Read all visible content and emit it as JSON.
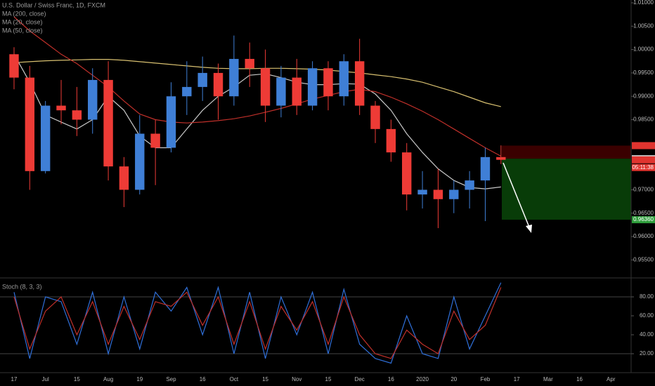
{
  "chart_data": [
    {
      "type": "candlestick",
      "title": "U.S. Dollar / Swiss Franc, 1D, FXCM",
      "categories": [
        "17",
        null,
        "Jul",
        null,
        "15",
        null,
        "Aug",
        null,
        "19",
        null,
        "Sep",
        null,
        "16",
        null,
        "Oct",
        null,
        "15",
        null,
        "Nov",
        null,
        "15",
        null,
        "Dec",
        null,
        "16",
        null,
        "2020",
        null,
        "20",
        null,
        "Feb",
        null,
        "17",
        null,
        "Mar",
        null,
        "16",
        null,
        "Apr",
        null
      ],
      "open": [
        0.999,
        0.994,
        0.974,
        0.988,
        0.987,
        0.985,
        0.9935,
        0.975,
        0.97,
        0.982,
        0.979,
        0.99,
        0.992,
        0.995,
        0.99,
        0.998,
        0.996,
        0.988,
        0.994,
        0.988,
        0.996,
        0.99,
        0.9975,
        0.988,
        0.983,
        0.978,
        0.969,
        0.97,
        0.968,
        0.97,
        0.972,
        0.977,
        null,
        null,
        null,
        null,
        null,
        null,
        null,
        null
      ],
      "high": [
        1.0005,
        0.9965,
        0.989,
        0.9935,
        0.992,
        0.996,
        0.9975,
        0.977,
        0.986,
        0.985,
        0.993,
        0.9975,
        0.9985,
        0.997,
        1.003,
        1.0015,
        1.0,
        0.9965,
        0.998,
        0.9975,
        0.9975,
        0.999,
        1.0023,
        0.989,
        0.985,
        0.98,
        0.974,
        0.9745,
        0.972,
        0.974,
        0.979,
        0.9795,
        null,
        null,
        null,
        null,
        null,
        null,
        null,
        null
      ],
      "low": [
        0.9915,
        0.97,
        0.9735,
        0.984,
        0.9815,
        0.982,
        0.972,
        0.9663,
        0.969,
        0.971,
        0.978,
        0.986,
        0.989,
        0.985,
        0.988,
        0.992,
        0.9845,
        0.9855,
        0.986,
        0.987,
        0.987,
        0.988,
        0.986,
        0.98,
        0.976,
        0.9656,
        0.966,
        0.9618,
        0.965,
        0.966,
        0.9633,
        0.9755,
        null,
        null,
        null,
        null,
        null,
        null,
        null,
        null
      ],
      "close": [
        0.994,
        0.974,
        0.988,
        0.987,
        0.985,
        0.9935,
        0.975,
        0.97,
        0.982,
        0.979,
        0.99,
        0.992,
        0.995,
        0.99,
        0.998,
        0.996,
        0.988,
        0.994,
        0.988,
        0.996,
        0.99,
        0.9975,
        0.988,
        0.983,
        0.978,
        0.969,
        0.97,
        0.968,
        0.97,
        0.972,
        0.977,
        0.97641,
        null,
        null,
        null,
        null,
        null,
        null,
        null,
        null
      ],
      "up_color": "#3f7fd6",
      "down_color": "#ee3b36",
      "series": [
        {
          "name": "MA (200, close)",
          "color": "#d8c070",
          "values": [
            0.9972,
            0.9974,
            0.9976,
            0.9977,
            0.9978,
            0.9979,
            0.9979,
            0.9977,
            0.9974,
            0.9971,
            0.9968,
            0.9965,
            0.9962,
            0.996,
            0.9959,
            0.9959,
            0.996,
            0.996,
            0.9959,
            0.9958,
            0.9956,
            0.9953,
            0.995,
            0.9946,
            0.9942,
            0.9937,
            0.993,
            0.992,
            0.991,
            0.9898,
            0.9886,
            0.9878,
            null,
            null,
            null,
            null,
            null,
            null,
            null,
            null
          ]
        },
        {
          "name": "MA (20, close)",
          "color": "#c8c8c8",
          "values": [
            0.999,
            0.993,
            0.986,
            0.9845,
            0.983,
            0.985,
            0.99,
            0.987,
            0.9815,
            0.979,
            0.979,
            0.983,
            0.987,
            0.99,
            0.992,
            0.9945,
            0.9948,
            0.994,
            0.993,
            0.9925,
            0.9925,
            0.9927,
            0.9926,
            0.9905,
            0.987,
            0.982,
            0.978,
            0.9745,
            0.972,
            0.9705,
            0.9702,
            0.9706,
            null,
            null,
            null,
            null,
            null,
            null,
            null,
            null
          ]
        },
        {
          "name": "MA (50, close)",
          "color": "#c0302a",
          "values": [
            1.007,
            1.004,
            1.0015,
            0.999,
            0.997,
            0.9945,
            0.992,
            0.989,
            0.9862,
            0.985,
            0.9845,
            0.9843,
            0.9845,
            0.9848,
            0.9852,
            0.9858,
            0.9866,
            0.9874,
            0.9884,
            0.9894,
            0.9902,
            0.991,
            0.9915,
            0.991,
            0.9898,
            0.9884,
            0.9868,
            0.985,
            0.983,
            0.981,
            0.979,
            0.9772,
            null,
            null,
            null,
            null,
            null,
            null,
            null,
            null
          ]
        }
      ],
      "ylim": [
        0.9513,
        1.0106
      ],
      "yticks": [
        {
          "value": 1.01,
          "label": "1.01000"
        },
        {
          "value": 1.005,
          "label": "1.00500"
        },
        {
          "value": 1.0,
          "label": "1.00000"
        },
        {
          "value": 0.995,
          "label": "0.99500"
        },
        {
          "value": 0.99,
          "label": "0.99000"
        },
        {
          "value": 0.985,
          "label": "0.98500"
        },
        {
          "value": 0.97,
          "label": "0.97000"
        },
        {
          "value": 0.965,
          "label": "0.96500"
        },
        {
          "value": 0.96,
          "label": "0.96000"
        },
        {
          "value": 0.955,
          "label": "0.95500"
        }
      ],
      "price_tags": [
        {
          "value": 0.97945,
          "color": "#e0342f"
        },
        {
          "value": 0.97665,
          "color": "#d4d4d4"
        },
        {
          "value": 0.97641,
          "color": "#e0342f"
        },
        {
          "value": 0.9636,
          "label": "0.96360",
          "color": "#2f9e3c"
        }
      ],
      "countdown": "05:11:38"
    },
    {
      "type": "line",
      "title": "Stoch (8, 3, 3)",
      "series": [
        {
          "color": "#2f6fd8",
          "values": [
            85,
            15,
            80,
            75,
            30,
            85,
            20,
            80,
            25,
            85,
            65,
            90,
            40,
            90,
            20,
            85,
            15,
            80,
            40,
            85,
            20,
            88,
            30,
            15,
            10,
            60,
            20,
            15,
            80,
            25,
            60,
            95,
            null,
            null,
            null,
            null,
            null,
            null,
            null,
            null
          ]
        },
        {
          "color": "#c0302a",
          "values": [
            80,
            25,
            65,
            80,
            40,
            75,
            30,
            70,
            35,
            75,
            70,
            85,
            50,
            80,
            30,
            75,
            25,
            70,
            45,
            75,
            30,
            80,
            40,
            20,
            15,
            45,
            30,
            20,
            65,
            35,
            50,
            90,
            null,
            null,
            null,
            null,
            null,
            null,
            null,
            null
          ]
        }
      ],
      "ylim": [
        0,
        100
      ],
      "yticks": [
        {
          "value": 80,
          "label": "80.00"
        },
        {
          "value": 60,
          "label": "60.00"
        },
        {
          "value": 40,
          "label": "40.00"
        },
        {
          "value": 20,
          "label": "20.00"
        }
      ],
      "bands": [
        80,
        20
      ]
    }
  ]
}
